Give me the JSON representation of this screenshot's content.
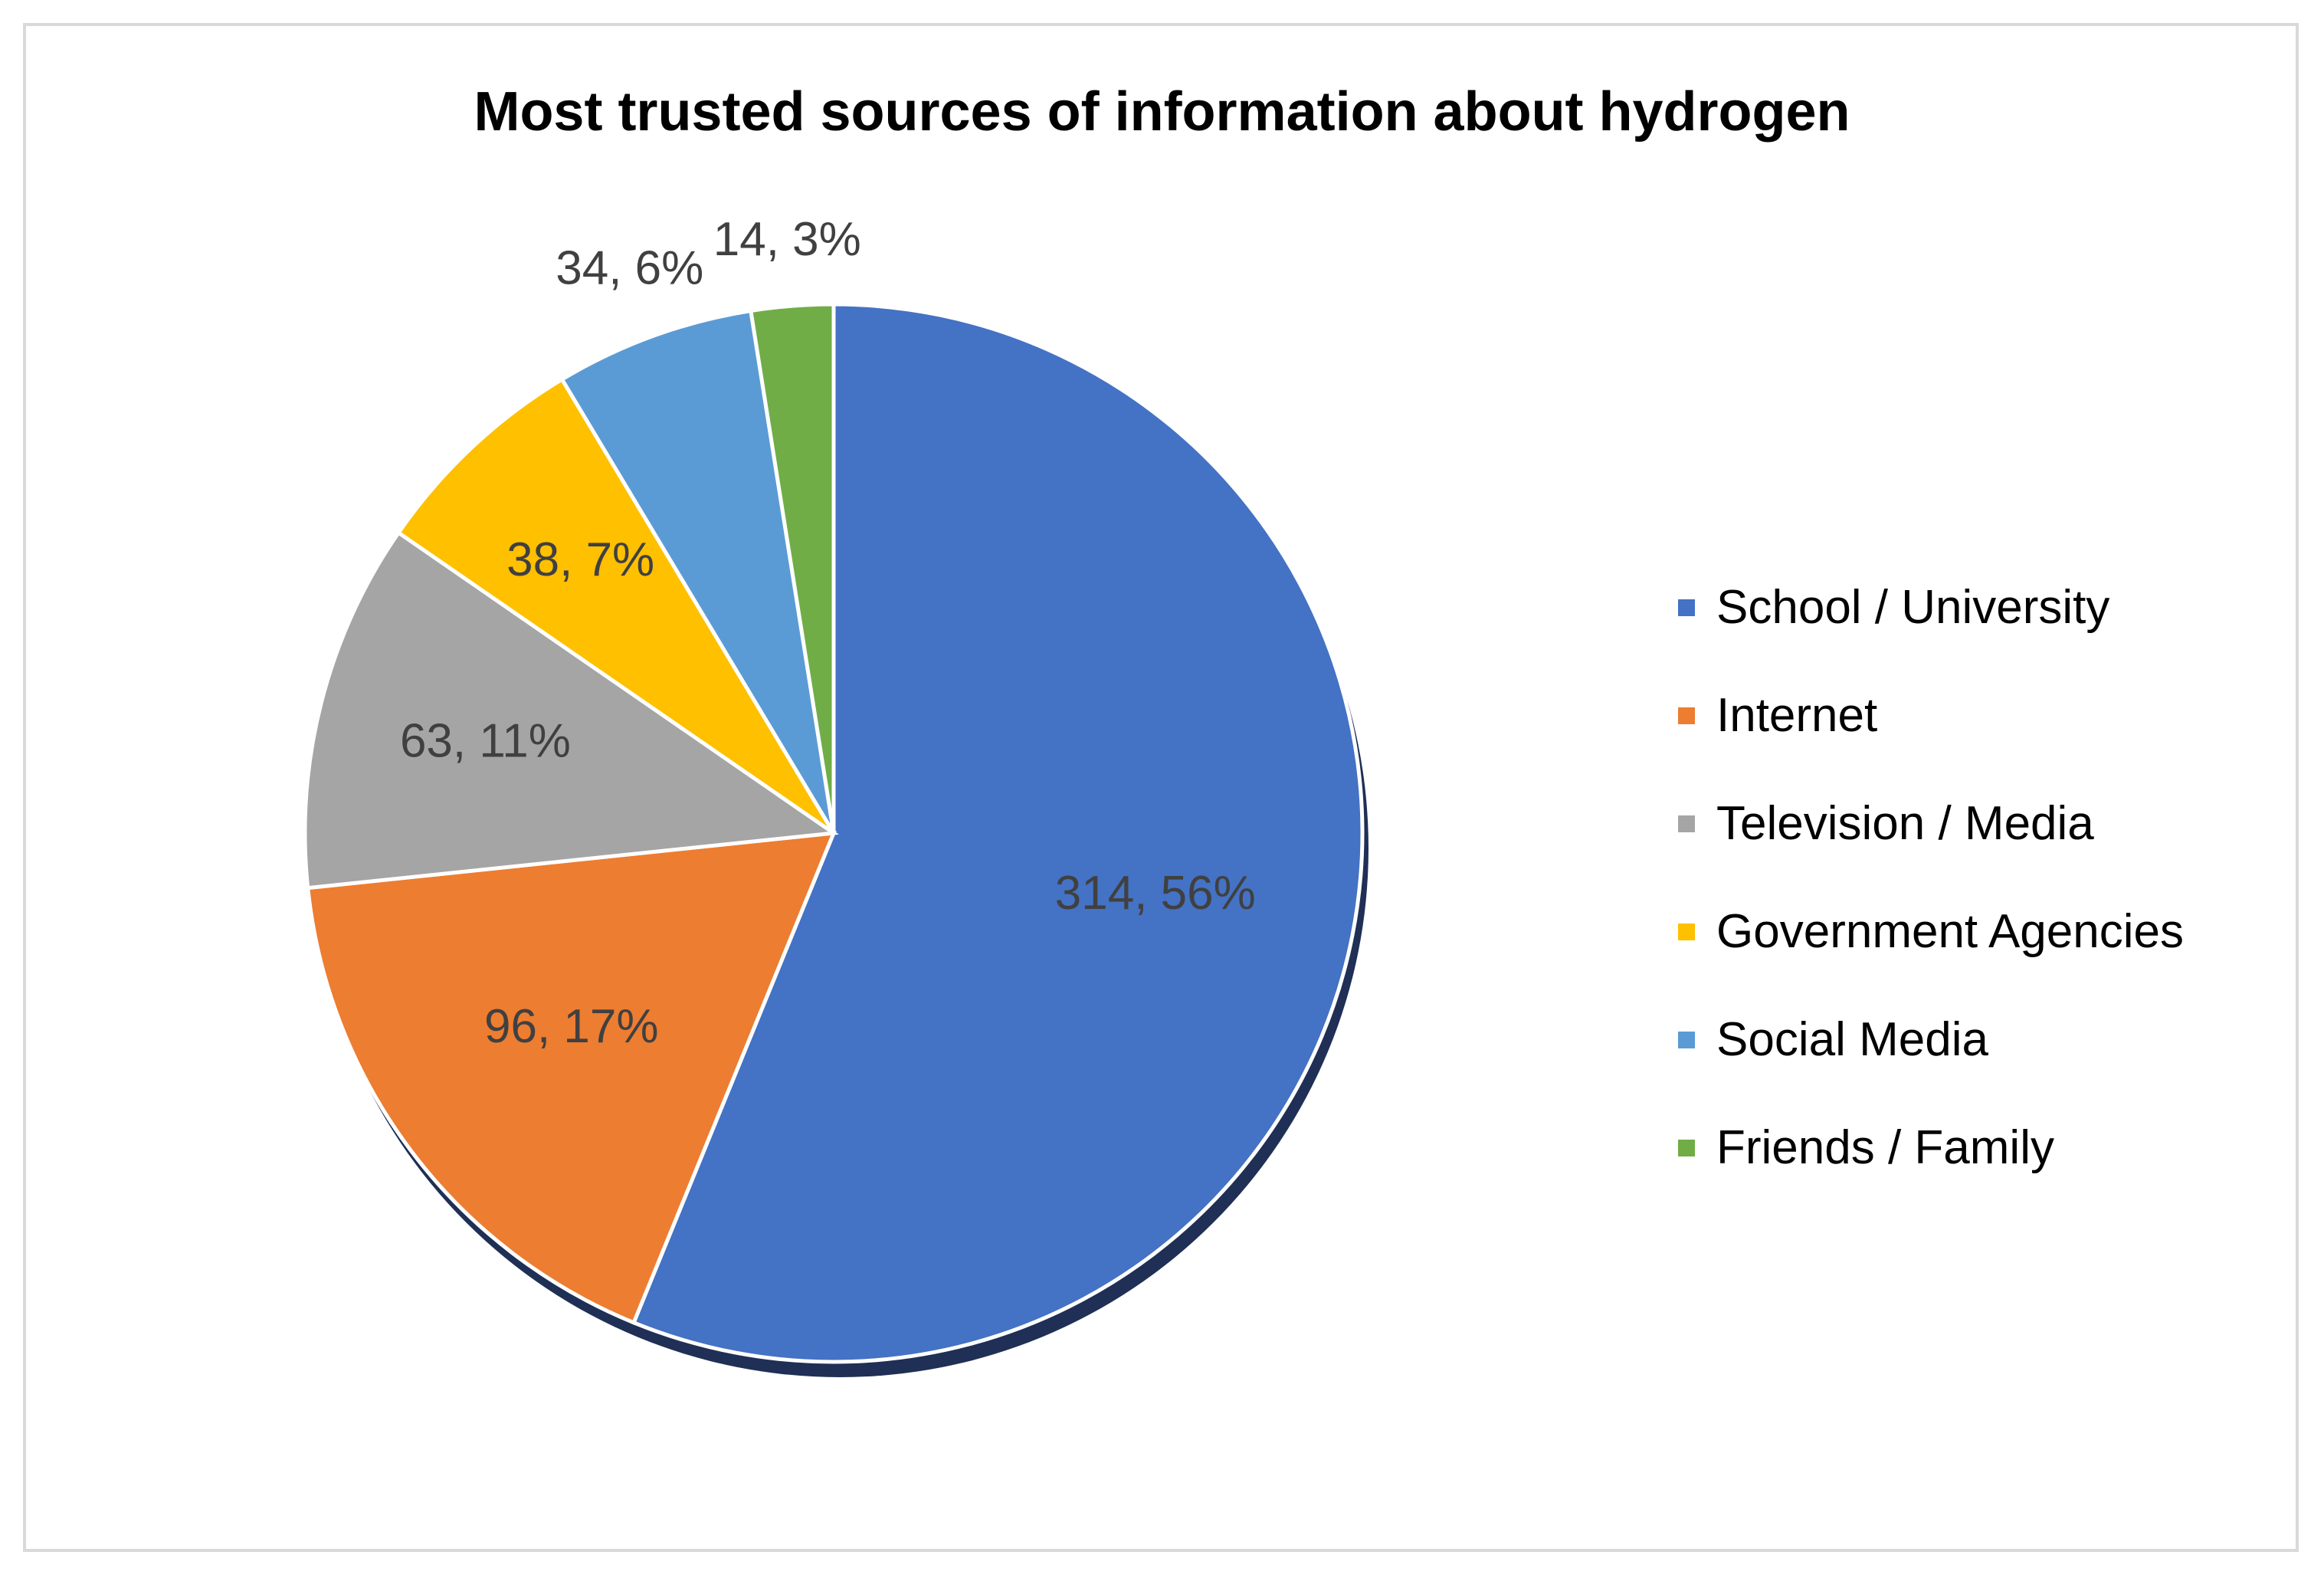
{
  "chart_data": {
    "type": "pie",
    "title": "Most trusted sources of information about hydrogen",
    "slices": [
      {
        "name": "School / University",
        "value": 314,
        "percent": "56%",
        "label": "314, 56%",
        "color": "#4472C4"
      },
      {
        "name": "Internet",
        "value": 96,
        "percent": "17%",
        "label": "96, 17%",
        "color": "#ED7D31"
      },
      {
        "name": "Television / Media",
        "value": 63,
        "percent": "11%",
        "label": "63, 11%",
        "color": "#A5A5A5"
      },
      {
        "name": "Government Agencies",
        "value": 38,
        "percent": "7%",
        "label": "38, 7%",
        "color": "#FFC000"
      },
      {
        "name": "Social Media",
        "value": 34,
        "percent": "6%",
        "label": "34, 6%",
        "color": "#5B9BD5"
      },
      {
        "name": "Friends / Family",
        "value": 14,
        "percent": "3%",
        "label": "14, 3%",
        "color": "#70AD47"
      }
    ],
    "start_angle_deg": 0,
    "direction": "clockwise",
    "legend_position": "right"
  }
}
